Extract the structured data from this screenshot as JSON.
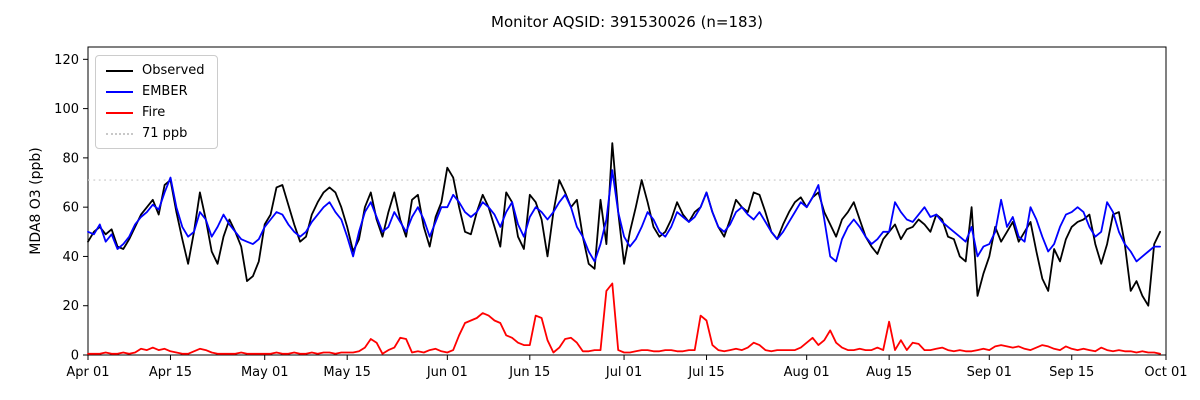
{
  "chart_data": {
    "type": "line",
    "title": "Monitor AQSID: 391530026 (n=183)",
    "xlabel": "",
    "ylabel": "MDA8 O3 (ppb)",
    "n": 183,
    "x_start": "Apr 01",
    "x_end": "Oct 01",
    "x_span_days": 183,
    "grid": false,
    "legend_position": "upper left",
    "ylim": [
      0,
      125
    ],
    "yticks": [
      0,
      20,
      40,
      60,
      80,
      100,
      120
    ],
    "xticks": [
      {
        "day": 0,
        "label": "Apr 01"
      },
      {
        "day": 14,
        "label": "Apr 15"
      },
      {
        "day": 30,
        "label": "May 01"
      },
      {
        "day": 44,
        "label": "May 15"
      },
      {
        "day": 61,
        "label": "Jun 01"
      },
      {
        "day": 75,
        "label": "Jun 15"
      },
      {
        "day": 91,
        "label": "Jul 01"
      },
      {
        "day": 105,
        "label": "Jul 15"
      },
      {
        "day": 122,
        "label": "Aug 01"
      },
      {
        "day": 136,
        "label": "Aug 15"
      },
      {
        "day": 153,
        "label": "Sep 01"
      },
      {
        "day": 167,
        "label": "Sep 15"
      },
      {
        "day": 183,
        "label": "Oct 01"
      }
    ],
    "threshold": {
      "value": 71,
      "label": "71 ppb",
      "color": "#d0d0d0",
      "linestyle": "dotted"
    },
    "legend": [
      {
        "label": "Observed",
        "color": "#000000",
        "style": "solid"
      },
      {
        "label": "EMBER",
        "color": "#0000ff",
        "style": "solid"
      },
      {
        "label": "Fire",
        "color": "#ff0000",
        "style": "solid"
      },
      {
        "label": "71 ppb",
        "color": "#c8c8c8",
        "style": "dotted"
      }
    ],
    "series": [
      {
        "name": "Observed",
        "color": "#000000",
        "values": [
          46,
          50,
          52,
          49,
          51,
          44,
          43,
          47,
          52,
          57,
          60,
          63,
          57,
          69,
          71,
          58,
          47,
          37,
          50,
          66,
          55,
          42,
          37,
          48,
          55,
          50,
          44,
          30,
          32,
          38,
          53,
          57,
          68,
          69,
          61,
          53,
          46,
          48,
          57,
          62,
          66,
          68,
          66,
          60,
          52,
          42,
          47,
          60,
          66,
          55,
          48,
          58,
          66,
          55,
          48,
          63,
          65,
          52,
          44,
          56,
          62,
          76,
          72,
          60,
          50,
          49,
          58,
          65,
          60,
          52,
          44,
          66,
          62,
          48,
          43,
          65,
          62,
          55,
          40,
          58,
          71,
          66,
          60,
          63,
          48,
          37,
          35,
          63,
          45,
          86,
          58,
          37,
          50,
          60,
          71,
          62,
          52,
          48,
          50,
          55,
          62,
          57,
          54,
          58,
          60,
          66,
          58,
          52,
          48,
          55,
          63,
          60,
          58,
          66,
          65,
          58,
          50,
          47,
          53,
          58,
          62,
          64,
          60,
          64,
          66,
          58,
          53,
          48,
          55,
          58,
          62,
          55,
          48,
          44,
          41,
          47,
          50,
          53,
          47,
          51,
          52,
          55,
          53,
          50,
          57,
          55,
          48,
          47,
          40,
          38,
          60,
          24,
          33,
          40,
          52,
          46,
          50,
          54,
          46,
          50,
          54,
          42,
          31,
          26,
          43,
          38,
          47,
          52,
          54,
          55,
          57,
          45,
          37,
          45,
          57,
          58,
          45,
          26,
          30,
          24,
          20,
          45,
          50
        ]
      },
      {
        "name": "EMBER",
        "color": "#0000ff",
        "values": [
          50,
          49,
          53,
          46,
          49,
          43,
          45,
          48,
          53,
          56,
          58,
          61,
          59,
          66,
          72,
          60,
          52,
          48,
          50,
          58,
          55,
          48,
          52,
          57,
          53,
          50,
          47,
          46,
          45,
          47,
          52,
          55,
          58,
          57,
          53,
          50,
          48,
          50,
          54,
          57,
          60,
          62,
          58,
          55,
          48,
          40,
          50,
          58,
          62,
          56,
          50,
          52,
          58,
          54,
          50,
          56,
          60,
          55,
          48,
          54,
          60,
          60,
          65,
          62,
          58,
          56,
          58,
          62,
          60,
          57,
          52,
          58,
          62,
          53,
          48,
          56,
          60,
          58,
          55,
          58,
          62,
          65,
          60,
          52,
          48,
          42,
          38,
          45,
          55,
          75,
          58,
          48,
          44,
          47,
          52,
          58,
          55,
          50,
          48,
          52,
          58,
          56,
          54,
          56,
          60,
          66,
          58,
          52,
          50,
          53,
          58,
          60,
          57,
          55,
          58,
          54,
          50,
          47,
          50,
          54,
          58,
          62,
          60,
          64,
          69,
          55,
          40,
          38,
          47,
          52,
          55,
          52,
          48,
          45,
          47,
          50,
          50,
          62,
          58,
          55,
          54,
          57,
          60,
          56,
          57,
          54,
          52,
          50,
          48,
          46,
          52,
          40,
          44,
          45,
          50,
          63,
          52,
          56,
          48,
          46,
          60,
          55,
          48,
          42,
          45,
          52,
          57,
          58,
          60,
          58,
          52,
          48,
          50,
          62,
          58,
          50,
          45,
          42,
          38,
          40,
          42,
          44,
          44
        ]
      },
      {
        "name": "Fire",
        "color": "#ff0000",
        "values": [
          0.5,
          0.5,
          0.5,
          1,
          0.5,
          0.5,
          1,
          0.5,
          1,
          2.5,
          2,
          3,
          2,
          2.5,
          1.5,
          1,
          0.5,
          0.5,
          1.5,
          2.5,
          2,
          1,
          0.5,
          0.5,
          0.5,
          0.5,
          1,
          0.5,
          0.5,
          0.5,
          0.5,
          0.5,
          1,
          0.5,
          0.5,
          1,
          0.5,
          0.5,
          1,
          0.5,
          1,
          1,
          0.5,
          1,
          1,
          1,
          1.5,
          3,
          6.5,
          5,
          0.5,
          2,
          3,
          7,
          6.5,
          1,
          1.5,
          1,
          2,
          2.5,
          1.5,
          1,
          2,
          8,
          13,
          14,
          15,
          17,
          16,
          14,
          13,
          8,
          7,
          5,
          4,
          4,
          16,
          15,
          6,
          1,
          3,
          6.5,
          7,
          5,
          1.5,
          1.5,
          2,
          2,
          26,
          29,
          2,
          1,
          1,
          1.5,
          2,
          2,
          1.5,
          1.5,
          2,
          2,
          1.5,
          1.5,
          2,
          2,
          16,
          14,
          4,
          2,
          1.5,
          2,
          2.5,
          2,
          3,
          5,
          4,
          2,
          1.5,
          2,
          2,
          2,
          2,
          3,
          5,
          7,
          4,
          6,
          10,
          5,
          3,
          2,
          2,
          2.5,
          2,
          2,
          3,
          2,
          13.5,
          2,
          6,
          2,
          5,
          4.5,
          2,
          2,
          2.5,
          3,
          2,
          1.5,
          2,
          1.5,
          1.5,
          2,
          2.5,
          2,
          3.5,
          4,
          3.5,
          3,
          3.5,
          2.5,
          2,
          3,
          4,
          3.5,
          2.5,
          2,
          3.5,
          2.5,
          2,
          2.5,
          2,
          1.5,
          3,
          2,
          1.5,
          2,
          1.5,
          1.5,
          1,
          1.5,
          1,
          1,
          0.5
        ]
      }
    ]
  }
}
